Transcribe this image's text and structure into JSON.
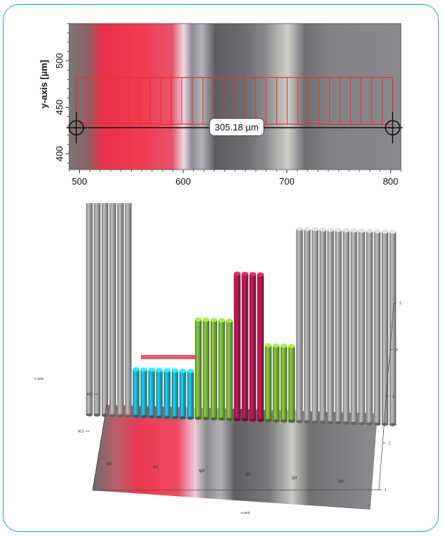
{
  "chart_data": [
    {
      "type": "image_plot_with_measurement",
      "ylabel": "y-axis [µm]",
      "x_ticks": [
        500,
        600,
        700,
        800
      ],
      "y_ticks": [
        400,
        450,
        500
      ],
      "xlim": [
        490,
        810
      ],
      "ylim": [
        383,
        540
      ],
      "measurement": {
        "label": "305.18 µm",
        "x_start": 497,
        "x_end": 802,
        "y": 428
      },
      "selection_region": {
        "x_start": 497,
        "x_end": 802,
        "y_bottom": 432,
        "y_top": 482,
        "slices": 30
      },
      "colors": {
        "overlay": "#e8312f",
        "line": "#111111"
      }
    },
    {
      "type": "bar3d",
      "xlabel": "x-axis",
      "ylabel": "y-axis",
      "x_tick_labels": [
        "516",
        "566",
        "616",
        "666",
        "716",
        "766"
      ],
      "y_tick_labels": [
        "463",
        "413"
      ],
      "z_tick_labels": [
        "1",
        "2",
        "3",
        "4",
        "5"
      ],
      "groups": [
        {
          "color": "#a8a8a8",
          "count": 6,
          "height": 4.6
        },
        {
          "color": "#1fb2c9",
          "count": 8,
          "height": 1.0
        },
        {
          "color": "#7bb23a",
          "count": 5,
          "height": 2.1
        },
        {
          "color": "#b01850",
          "count": 4,
          "height": 3.1
        },
        {
          "color": "#7bb23a",
          "count": 4,
          "height": 1.6
        },
        {
          "color": "#a8a8a8",
          "count": 13,
          "height": 4.1
        }
      ]
    }
  ]
}
